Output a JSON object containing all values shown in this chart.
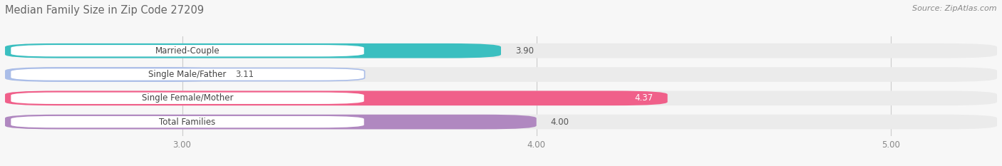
{
  "title": "Median Family Size in Zip Code 27209",
  "source": "Source: ZipAtlas.com",
  "categories": [
    "Married-Couple",
    "Single Male/Father",
    "Single Female/Mother",
    "Total Families"
  ],
  "values": [
    3.9,
    3.11,
    4.37,
    4.0
  ],
  "bar_colors": [
    "#3bbfc0",
    "#aabde8",
    "#f0608a",
    "#b088c0"
  ],
  "bar_height": 0.62,
  "xlim": [
    2.5,
    5.3
  ],
  "xticks": [
    3.0,
    4.0,
    5.0
  ],
  "xtick_labels": [
    "3.00",
    "4.00",
    "5.00"
  ],
  "bg_color": "#f7f7f7",
  "bar_bg_color": "#ebebeb",
  "label_bg": "white",
  "title_fontsize": 10.5,
  "label_fontsize": 8.5,
  "value_fontsize": 8.5,
  "source_fontsize": 8
}
